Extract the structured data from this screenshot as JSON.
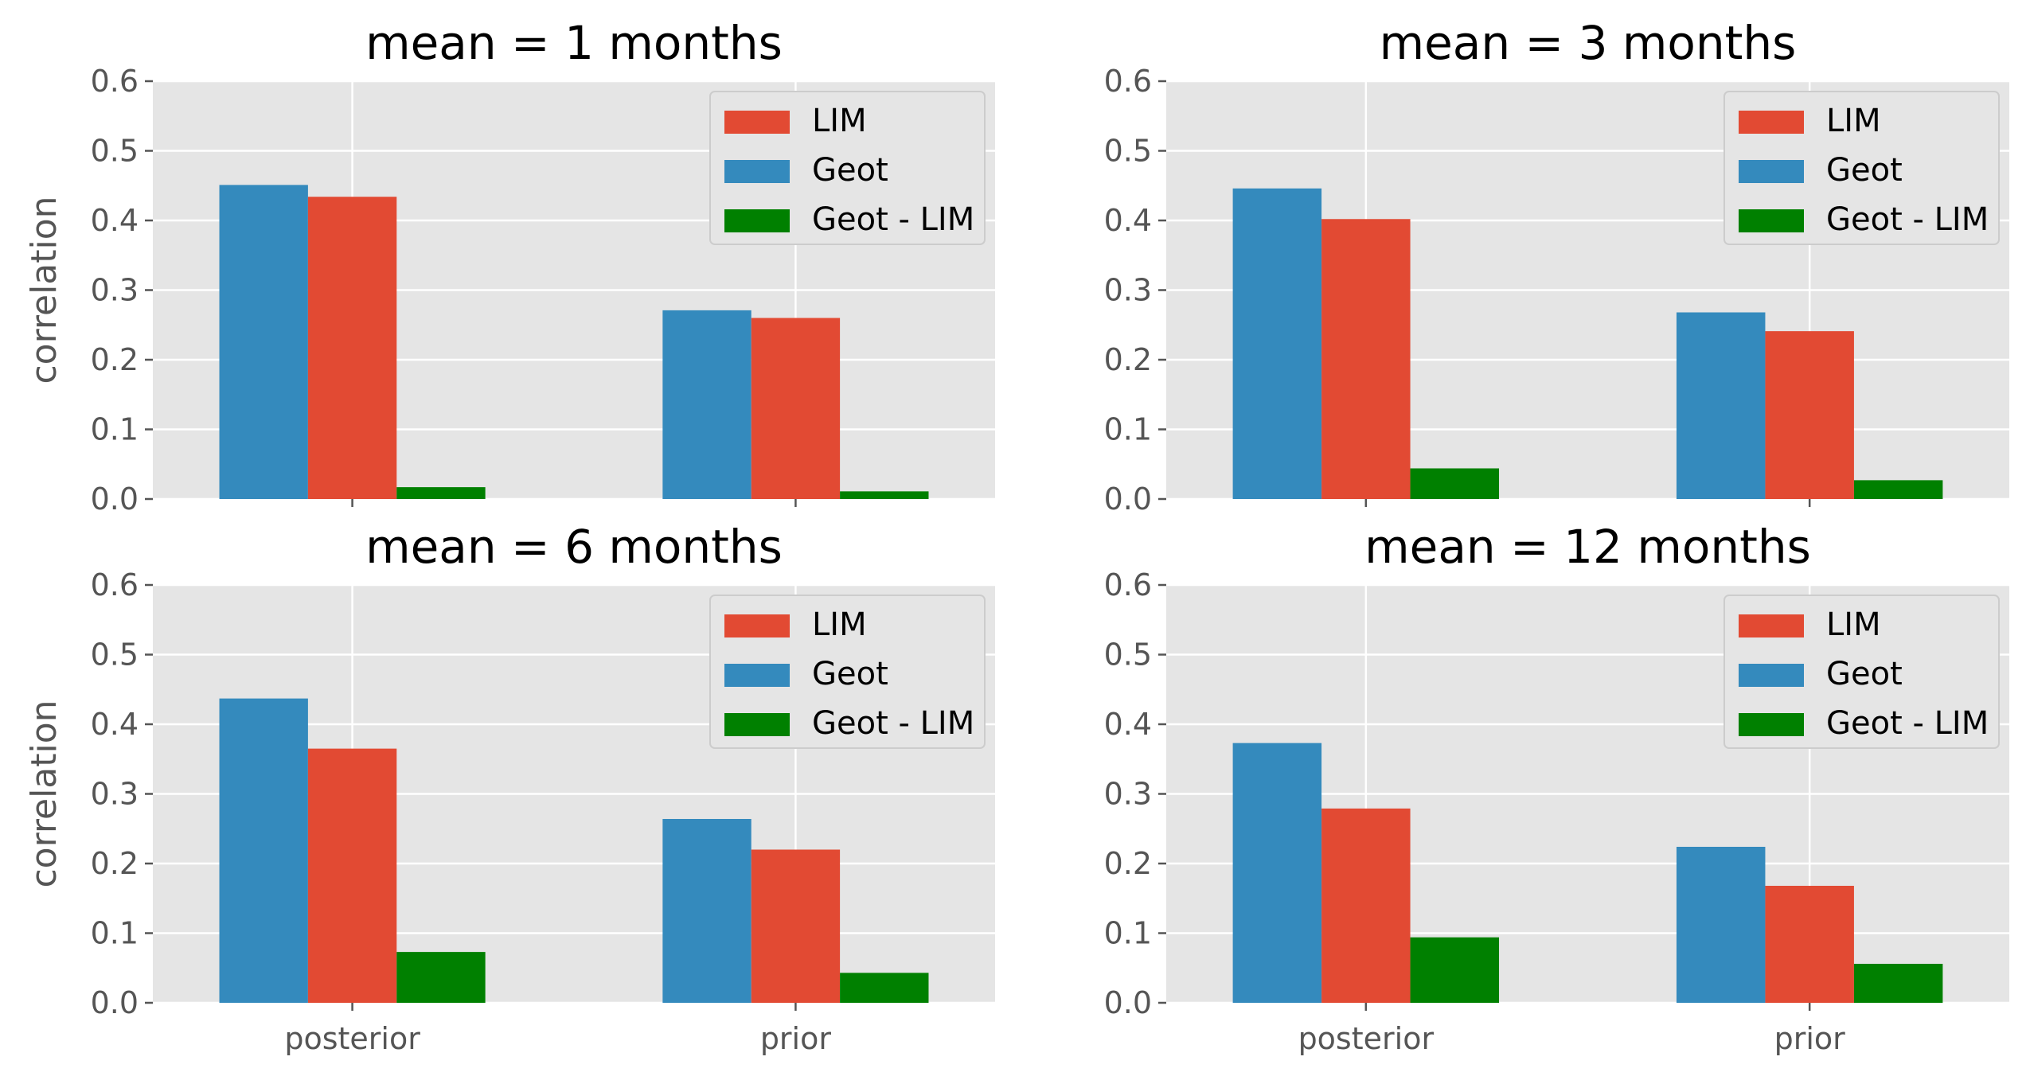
{
  "chart_data": [
    {
      "type": "bar",
      "title": "mean = 1 months",
      "ylabel": "correlation",
      "categories": [
        "posterior",
        "prior"
      ],
      "show_xticklabels": false,
      "ylim": [
        0,
        0.6
      ],
      "yticks": [
        "0.0",
        "0.1",
        "0.2",
        "0.3",
        "0.4",
        "0.5",
        "0.6"
      ],
      "series": [
        {
          "name": "Geot",
          "values": [
            0.451,
            0.271
          ],
          "color": "#348ABD"
        },
        {
          "name": "LIM",
          "values": [
            0.434,
            0.26
          ],
          "color": "#E24A33"
        },
        {
          "name": "Geot - LIM",
          "values": [
            0.017,
            0.011
          ],
          "color": "#008000"
        }
      ],
      "legend": {
        "placement": "top-right",
        "order": [
          "LIM",
          "Geot",
          "Geot - LIM"
        ]
      },
      "grid": true
    },
    {
      "type": "bar",
      "title": "mean = 3 months",
      "ylabel": "",
      "categories": [
        "posterior",
        "prior"
      ],
      "show_xticklabels": false,
      "ylim": [
        0,
        0.6
      ],
      "yticks": [
        "0.0",
        "0.1",
        "0.2",
        "0.3",
        "0.4",
        "0.5",
        "0.6"
      ],
      "series": [
        {
          "name": "Geot",
          "values": [
            0.446,
            0.268
          ],
          "color": "#348ABD"
        },
        {
          "name": "LIM",
          "values": [
            0.402,
            0.241
          ],
          "color": "#E24A33"
        },
        {
          "name": "Geot - LIM",
          "values": [
            0.044,
            0.027
          ],
          "color": "#008000"
        }
      ],
      "legend": {
        "placement": "top-right",
        "order": [
          "LIM",
          "Geot",
          "Geot - LIM"
        ]
      },
      "grid": true
    },
    {
      "type": "bar",
      "title": "mean = 6 months",
      "ylabel": "correlation",
      "categories": [
        "posterior",
        "prior"
      ],
      "show_xticklabels": true,
      "ylim": [
        0,
        0.6
      ],
      "yticks": [
        "0.0",
        "0.1",
        "0.2",
        "0.3",
        "0.4",
        "0.5",
        "0.6"
      ],
      "series": [
        {
          "name": "Geot",
          "values": [
            0.437,
            0.264
          ],
          "color": "#348ABD"
        },
        {
          "name": "LIM",
          "values": [
            0.365,
            0.22
          ],
          "color": "#E24A33"
        },
        {
          "name": "Geot - LIM",
          "values": [
            0.073,
            0.043
          ],
          "color": "#008000"
        }
      ],
      "legend": {
        "placement": "top-right",
        "order": [
          "LIM",
          "Geot",
          "Geot - LIM"
        ]
      },
      "grid": true
    },
    {
      "type": "bar",
      "title": "mean = 12 months",
      "ylabel": "",
      "categories": [
        "posterior",
        "prior"
      ],
      "show_xticklabels": true,
      "ylim": [
        0,
        0.6
      ],
      "yticks": [
        "0.0",
        "0.1",
        "0.2",
        "0.3",
        "0.4",
        "0.5",
        "0.6"
      ],
      "series": [
        {
          "name": "Geot",
          "values": [
            0.373,
            0.224
          ],
          "color": "#348ABD"
        },
        {
          "name": "LIM",
          "values": [
            0.279,
            0.168
          ],
          "color": "#E24A33"
        },
        {
          "name": "Geot - LIM",
          "values": [
            0.094,
            0.056
          ],
          "color": "#008000"
        }
      ],
      "legend": {
        "placement": "top-right",
        "order": [
          "LIM",
          "Geot",
          "Geot - LIM"
        ]
      },
      "grid": true
    }
  ]
}
